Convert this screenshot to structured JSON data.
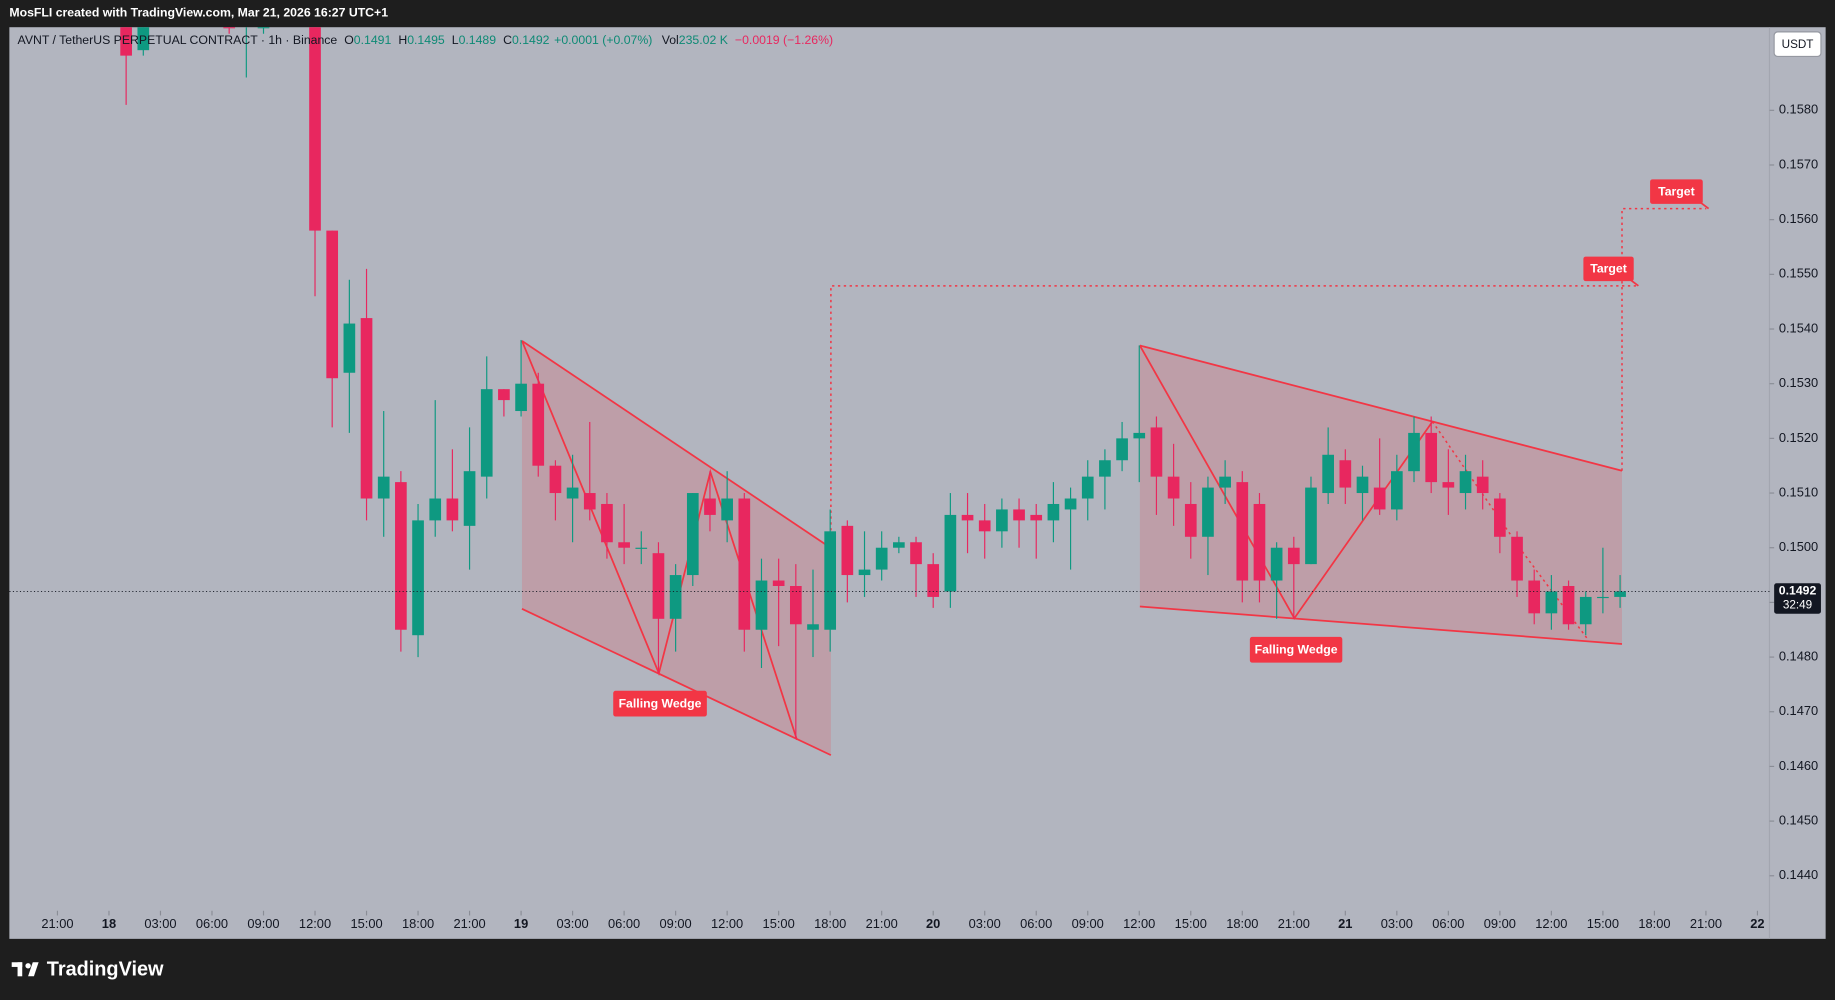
{
  "caption": "MosFLI created with TradingView.com, Mar 21, 2026 16:27 UTC+1",
  "legend": {
    "symbol": "AVNT / TetherUS PERPETUAL CONTRACT · 1h · Binance",
    "items": [
      {
        "label": "O",
        "value": "0.1491"
      },
      {
        "label": "H",
        "value": "0.1495"
      },
      {
        "label": "L",
        "value": "0.1489"
      },
      {
        "label": "C",
        "value": "0.1492"
      }
    ],
    "change": "+0.0001 (+0.07%)",
    "vol_label": "Vol",
    "vol_value": "235.02 K",
    "vol_change": "−0.0019 (−1.26%)"
  },
  "currency_button": "USDT",
  "brand": "TradingView",
  "chart_data": {
    "type": "candlestick",
    "up_color": "#0e9981",
    "down_color": "#e8275f",
    "x": [
      1,
      2,
      7,
      8,
      9,
      12,
      13,
      14,
      15,
      16,
      17,
      18,
      19,
      20,
      21,
      22,
      23,
      24,
      25,
      26,
      27,
      28,
      29,
      30,
      31,
      32,
      33,
      34,
      35,
      36,
      37,
      38,
      39,
      40,
      41,
      42,
      43,
      44,
      45,
      46,
      47,
      48,
      49,
      50,
      51,
      52,
      53,
      54,
      55,
      56,
      57,
      58,
      59,
      60,
      61,
      62,
      63,
      64,
      65,
      66,
      67,
      68,
      69,
      70,
      71,
      72,
      73,
      74,
      75,
      76,
      77,
      78,
      79,
      80,
      81,
      82,
      83,
      84,
      85,
      86,
      87,
      88
    ],
    "open": [
      0.1598,
      0.1591,
      0.1597,
      0.1597,
      0.1595,
      0.16,
      0.1558,
      0.1532,
      0.1542,
      0.1509,
      0.1512,
      0.1484,
      0.1505,
      0.1509,
      0.1504,
      0.1513,
      0.1529,
      0.1525,
      0.153,
      0.1515,
      0.1509,
      0.151,
      0.1508,
      0.1501,
      0.15,
      0.1499,
      0.1487,
      0.1495,
      0.1509,
      0.1505,
      0.1509,
      0.1485,
      0.1494,
      0.1493,
      0.1485,
      0.1485,
      0.1504,
      0.1495,
      0.1496,
      0.15,
      0.1501,
      0.1497,
      0.1492,
      0.1506,
      0.1505,
      0.1503,
      0.1507,
      0.1506,
      0.1505,
      0.1507,
      0.1509,
      0.1513,
      0.1516,
      0.152,
      0.1522,
      0.1513,
      0.1508,
      0.1502,
      0.1511,
      0.1512,
      0.1508,
      0.1494,
      0.15,
      0.1497,
      0.151,
      0.1516,
      0.151,
      0.1511,
      0.1507,
      0.1514,
      0.1521,
      0.1512,
      0.151,
      0.1513,
      0.1509,
      0.1502,
      0.1494,
      0.1488,
      0.1493,
      0.1486,
      0.1491,
      0.1491
    ],
    "high": [
      0.16,
      0.16,
      0.1598,
      0.1599,
      0.16,
      0.1602,
      0.1558,
      0.1549,
      0.1551,
      0.1525,
      0.1514,
      0.1508,
      0.1527,
      0.1518,
      0.1522,
      0.1535,
      0.1529,
      0.1538,
      0.1532,
      0.1516,
      0.1517,
      0.1523,
      0.151,
      0.1508,
      0.1503,
      0.1501,
      0.1497,
      0.151,
      0.1514,
      0.1514,
      0.151,
      0.1498,
      0.1498,
      0.1497,
      0.1496,
      0.1507,
      0.1505,
      0.1503,
      0.1503,
      0.1502,
      0.1502,
      0.1499,
      0.151,
      0.151,
      0.1508,
      0.1509,
      0.1509,
      0.1508,
      0.1512,
      0.1511,
      0.1516,
      0.1518,
      0.1523,
      0.1537,
      0.1524,
      0.1519,
      0.1512,
      0.1513,
      0.1516,
      0.1514,
      0.151,
      0.1501,
      0.1502,
      0.1513,
      0.1522,
      0.1518,
      0.1515,
      0.152,
      0.1517,
      0.1524,
      0.1524,
      0.1518,
      0.1517,
      0.1516,
      0.151,
      0.1503,
      0.1496,
      0.1495,
      0.1494,
      0.1492,
      0.15,
      0.1495
    ],
    "low": [
      0.1581,
      0.159,
      0.1594,
      0.1586,
      0.1594,
      0.1546,
      0.1522,
      0.1521,
      0.1505,
      0.1502,
      0.1481,
      0.148,
      0.1502,
      0.1503,
      0.1496,
      0.1509,
      0.1524,
      0.1524,
      0.1513,
      0.1505,
      0.1501,
      0.1505,
      0.1498,
      0.1497,
      0.1497,
      0.1477,
      0.1481,
      0.1493,
      0.1503,
      0.1501,
      0.1481,
      0.1478,
      0.1482,
      0.1465,
      0.148,
      0.1481,
      0.149,
      0.1491,
      0.1494,
      0.1499,
      0.1491,
      0.1489,
      0.1489,
      0.1499,
      0.1498,
      0.15,
      0.15,
      0.1498,
      0.1501,
      0.1496,
      0.1505,
      0.1507,
      0.1514,
      0.1512,
      0.1506,
      0.1504,
      0.1498,
      0.1495,
      0.1508,
      0.149,
      0.149,
      0.1487,
      0.1487,
      0.1497,
      0.1508,
      0.1508,
      0.1505,
      0.1506,
      0.1505,
      0.1512,
      0.151,
      0.1506,
      0.1507,
      0.1507,
      0.1499,
      0.1491,
      0.1486,
      0.1485,
      0.1485,
      0.1484,
      0.1488,
      0.1489
    ],
    "close": [
      0.159,
      0.1597,
      0.1595,
      0.1598,
      0.1597,
      0.1558,
      0.1531,
      0.1541,
      0.1509,
      0.1513,
      0.1485,
      0.1505,
      0.1509,
      0.1505,
      0.1514,
      0.1529,
      0.1527,
      0.153,
      0.1515,
      0.151,
      0.1511,
      0.1507,
      0.1501,
      0.15,
      0.15,
      0.1487,
      0.1495,
      0.151,
      0.1506,
      0.1509,
      0.1485,
      0.1494,
      0.1493,
      0.1486,
      0.1486,
      0.1503,
      0.1495,
      0.1496,
      0.15,
      0.1501,
      0.1497,
      0.1491,
      0.1506,
      0.1505,
      0.1503,
      0.1507,
      0.1505,
      0.1505,
      0.1508,
      0.1509,
      0.1513,
      0.1516,
      0.152,
      0.1521,
      0.1513,
      0.1509,
      0.1502,
      0.1511,
      0.1513,
      0.1494,
      0.1494,
      0.15,
      0.1497,
      0.1511,
      0.1517,
      0.1511,
      0.1513,
      0.1507,
      0.1514,
      0.1521,
      0.1512,
      0.1511,
      0.1514,
      0.151,
      0.1502,
      0.1494,
      0.1488,
      0.1492,
      0.1486,
      0.1491,
      0.1491,
      0.1492
    ],
    "xlim": [
      -5.8,
      96.7
    ],
    "ylim": [
      0.14336,
      0.15952
    ],
    "xticks": [
      {
        "value": -3,
        "label": "21:00"
      },
      {
        "value": 0,
        "label": "18"
      },
      {
        "value": 3,
        "label": "03:00"
      },
      {
        "value": 6,
        "label": "06:00"
      },
      {
        "value": 9,
        "label": "09:00"
      },
      {
        "value": 12,
        "label": "12:00"
      },
      {
        "value": 15,
        "label": "15:00"
      },
      {
        "value": 18,
        "label": "18:00"
      },
      {
        "value": 21,
        "label": "21:00"
      },
      {
        "value": 24,
        "label": "19"
      },
      {
        "value": 27,
        "label": "03:00"
      },
      {
        "value": 30,
        "label": "06:00"
      },
      {
        "value": 33,
        "label": "09:00"
      },
      {
        "value": 36,
        "label": "12:00"
      },
      {
        "value": 39,
        "label": "15:00"
      },
      {
        "value": 42,
        "label": "18:00"
      },
      {
        "value": 45,
        "label": "21:00"
      },
      {
        "value": 48,
        "label": "20"
      },
      {
        "value": 51,
        "label": "03:00"
      },
      {
        "value": 54,
        "label": "06:00"
      },
      {
        "value": 57,
        "label": "09:00"
      },
      {
        "value": 60,
        "label": "12:00"
      },
      {
        "value": 63,
        "label": "15:00"
      },
      {
        "value": 66,
        "label": "18:00"
      },
      {
        "value": 69,
        "label": "21:00"
      },
      {
        "value": 72,
        "label": "21"
      },
      {
        "value": 75,
        "label": "03:00"
      },
      {
        "value": 78,
        "label": "06:00"
      },
      {
        "value": 81,
        "label": "09:00"
      },
      {
        "value": 84,
        "label": "12:00"
      },
      {
        "value": 87,
        "label": "15:00"
      },
      {
        "value": 90,
        "label": "18:00"
      },
      {
        "value": 93,
        "label": "21:00"
      },
      {
        "value": 96,
        "label": "22"
      }
    ],
    "yticks": [
      {
        "value": 0.144,
        "label": "0.1440"
      },
      {
        "value": 0.145,
        "label": "0.1450"
      },
      {
        "value": 0.146,
        "label": "0.1460"
      },
      {
        "value": 0.147,
        "label": "0.1470"
      },
      {
        "value": 0.148,
        "label": "0.1480"
      },
      {
        "value": 0.149,
        "label": "0.1490"
      },
      {
        "value": 0.15,
        "label": "0.1500"
      },
      {
        "value": 0.151,
        "label": "0.1510"
      },
      {
        "value": 0.152,
        "label": "0.1520"
      },
      {
        "value": 0.153,
        "label": "0.1530"
      },
      {
        "value": 0.154,
        "label": "0.1540"
      },
      {
        "value": 0.155,
        "label": "0.1550"
      },
      {
        "value": 0.156,
        "label": "0.1560"
      },
      {
        "value": 0.157,
        "label": "0.1570"
      },
      {
        "value": 0.158,
        "label": "0.1580"
      }
    ],
    "last_price": 0.1492,
    "countdown": "32:49",
    "annotations": [
      "Falling Wedge",
      "Falling Wedge",
      "Target",
      "Target"
    ]
  }
}
